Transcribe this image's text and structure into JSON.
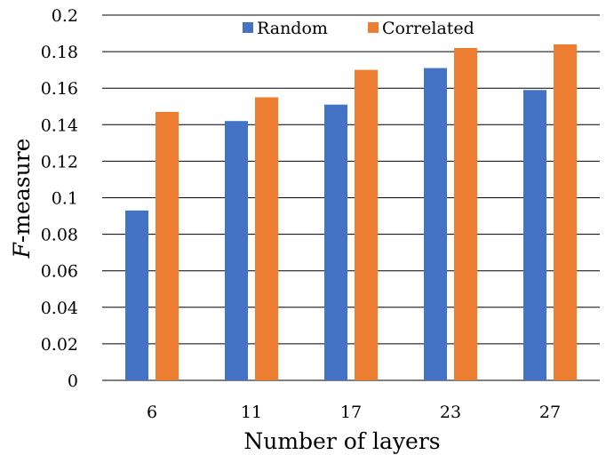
{
  "chart_data": {
    "type": "bar",
    "categories": [
      "6",
      "11",
      "17",
      "23",
      "27"
    ],
    "series": [
      {
        "name": "Random",
        "color": "#4472C4",
        "values": [
          0.093,
          0.142,
          0.151,
          0.171,
          0.159
        ]
      },
      {
        "name": "Correlated",
        "color": "#ED7D31",
        "values": [
          0.147,
          0.155,
          0.17,
          0.182,
          0.184
        ]
      }
    ],
    "xlabel": "Number of layers",
    "ylabel_italic": "F",
    "ylabel_rest": "-measure",
    "ylim": [
      0,
      0.2
    ],
    "yticks": [
      0,
      0.02,
      0.04,
      0.06,
      0.08,
      0.1,
      0.12,
      0.14,
      0.16,
      0.18,
      0.2
    ],
    "ytick_labels": [
      "0",
      "0.02",
      "0.04",
      "0.06",
      "0.08",
      "0.1",
      "0.12",
      "0.14",
      "0.16",
      "0.18",
      "0.2"
    ],
    "grid": true,
    "legend_position": "top-center"
  }
}
